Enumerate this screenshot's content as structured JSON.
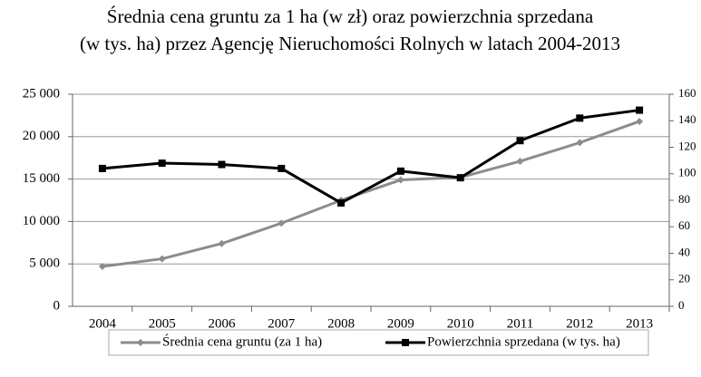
{
  "chart_data": {
    "type": "line",
    "title": [
      "Średnia cena gruntu za 1 ha (w zł) oraz powierzchnia sprzedana",
      "(w tys. ha) przez Agencję Nieruchomości Rolnych w latach 2004-2013"
    ],
    "categories": [
      "2004",
      "2005",
      "2006",
      "2007",
      "2008",
      "2009",
      "2010",
      "2011",
      "2012",
      "2013"
    ],
    "series": [
      {
        "name": "Średnia cena gruntu (za 1 ha)",
        "color": "#8c8c8c",
        "marker": "diamond",
        "axis": "y",
        "values": [
          4700,
          5600,
          7400,
          9800,
          12500,
          14900,
          15200,
          17100,
          19300,
          21800
        ]
      },
      {
        "name": "Powierzchnia sprzedana (w tys. ha)",
        "color": "#000000",
        "marker": "square",
        "axis": "y2",
        "values": [
          104,
          108,
          107,
          104,
          78,
          102,
          97,
          125,
          142,
          148
        ]
      }
    ],
    "ylim": [
      0,
      25000
    ],
    "yticks": [
      0,
      {
        "value": 5000,
        "label": "5 000"
      },
      {
        "value": 10000,
        "label": "10 000"
      },
      {
        "value": 15000,
        "label": "15 000"
      },
      {
        "value": 20000,
        "label": "20 000"
      },
      {
        "value": 25000,
        "label": "25 000"
      }
    ],
    "y2lim": [
      0,
      160
    ],
    "y2ticks": [
      0,
      20,
      40,
      60,
      80,
      100,
      120,
      140,
      160
    ],
    "grid": true,
    "legend": "bottom"
  }
}
